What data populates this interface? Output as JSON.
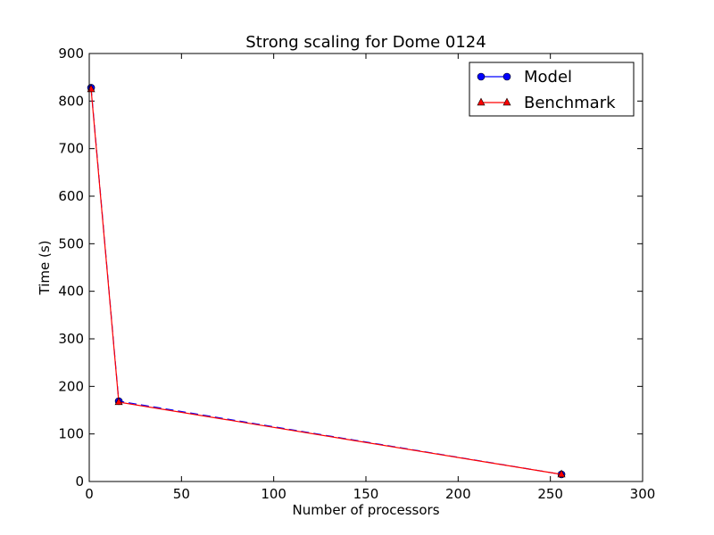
{
  "chart_data": {
    "type": "line",
    "title": "Strong scaling for Dome 0124",
    "xlabel": "Number of processors",
    "ylabel": "Time (s)",
    "xlim": [
      0,
      300
    ],
    "ylim": [
      0,
      900
    ],
    "xticks": [
      0,
      50,
      100,
      150,
      200,
      250,
      300
    ],
    "yticks": [
      0,
      100,
      200,
      300,
      400,
      500,
      600,
      700,
      800,
      900
    ],
    "grid": false,
    "legend_position": "top-right",
    "series": [
      {
        "name": "Model",
        "color": "#0000ff",
        "marker": "circle",
        "x": [
          1,
          16,
          256
        ],
        "y": [
          828,
          169,
          15
        ]
      },
      {
        "name": "Benchmark",
        "color": "#ff0000",
        "marker": "triangle",
        "x": [
          1,
          16,
          256
        ],
        "y": [
          825,
          167,
          15
        ]
      }
    ]
  }
}
